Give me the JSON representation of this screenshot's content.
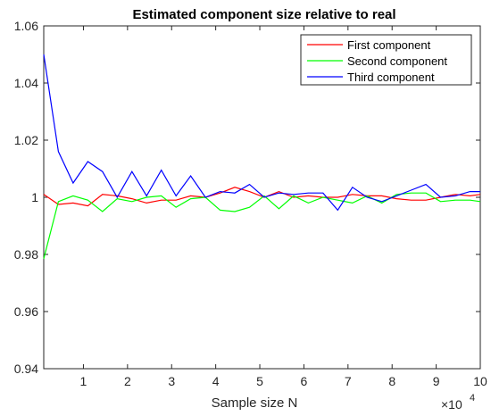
{
  "chart_data": {
    "type": "line",
    "title": "Estimated component size relative to real",
    "xlabel": "Sample size N",
    "ylabel": "",
    "x_exponent_label": "×10",
    "x_exponent_power": "4",
    "xlim": [
      0.1,
      10
    ],
    "ylim": [
      0.94,
      1.06
    ],
    "x_ticks": [
      1,
      2,
      3,
      4,
      5,
      6,
      7,
      8,
      9,
      10
    ],
    "y_ticks": [
      0.94,
      0.96,
      0.98,
      1.0,
      1.02,
      1.04,
      1.06
    ],
    "y_tick_labels": [
      "0.94",
      "0.96",
      "0.98",
      "1",
      "1.02",
      "1.04",
      "1.06"
    ],
    "legend_position": "top-right",
    "x": [
      0.1,
      0.433,
      0.767,
      1.1,
      1.433,
      1.767,
      2.1,
      2.433,
      2.767,
      3.1,
      3.433,
      3.767,
      4.1,
      4.433,
      4.767,
      5.1,
      5.433,
      5.767,
      6.1,
      6.433,
      6.767,
      7.1,
      7.433,
      7.767,
      8.1,
      8.433,
      8.767,
      9.1,
      9.433,
      9.767,
      10.0
    ],
    "series": [
      {
        "name": "First component",
        "color": "#ff0000",
        "values": [
          1.001,
          0.9975,
          0.998,
          0.997,
          1.001,
          1.0005,
          0.9995,
          0.998,
          0.999,
          0.999,
          1.0005,
          1.0,
          1.0015,
          1.0035,
          1.002,
          1.0,
          1.002,
          1.0,
          1.0005,
          1.0,
          1.0,
          1.001,
          1.0005,
          1.0005,
          0.9995,
          0.999,
          0.999,
          1.0,
          1.001,
          1.0005,
          1.001
        ]
      },
      {
        "name": "Second component",
        "color": "#00ff00",
        "values": [
          0.9785,
          0.9985,
          1.0005,
          0.999,
          0.995,
          0.9995,
          0.9985,
          1.0,
          1.0005,
          0.9965,
          0.9995,
          1.0,
          0.9955,
          0.995,
          0.9965,
          1.0005,
          0.996,
          1.0005,
          0.998,
          1.0,
          0.999,
          0.998,
          1.0005,
          0.998,
          1.001,
          1.0015,
          1.0015,
          0.9985,
          0.999,
          0.999,
          0.9985
        ]
      },
      {
        "name": "Third component",
        "color": "#0000ff",
        "values": [
          1.05,
          1.016,
          1.005,
          1.0125,
          1.009,
          1.0,
          1.009,
          1.0005,
          1.0095,
          1.0005,
          1.0075,
          1.0,
          1.002,
          1.0015,
          1.0045,
          1.0,
          1.0015,
          1.001,
          1.0015,
          1.0015,
          0.9955,
          1.0035,
          1.0,
          0.9985,
          1.0005,
          1.0025,
          1.0045,
          1.0,
          1.0005,
          1.002,
          1.002
        ]
      }
    ]
  }
}
